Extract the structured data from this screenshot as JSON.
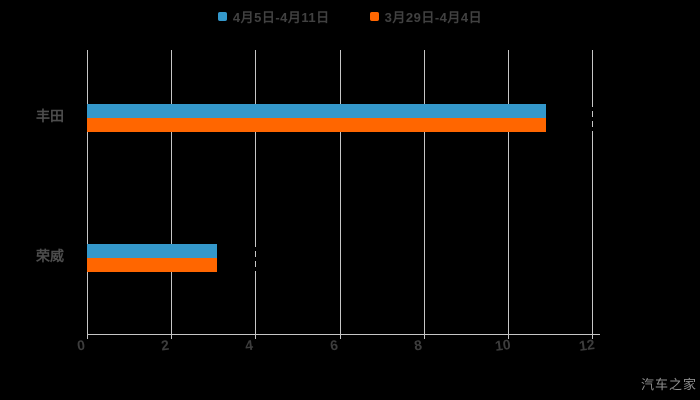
{
  "legend": {
    "items": [
      {
        "label": "4月5日-4月11日",
        "color": "#3498cb"
      },
      {
        "label": "3月29日-4月4日",
        "color": "#ff6600"
      }
    ]
  },
  "chart_data": {
    "type": "bar",
    "orientation": "horizontal",
    "title": "",
    "categories": [
      "丰田",
      "荣威"
    ],
    "series": [
      {
        "name": "4月5日-4月11日",
        "color": "#3498cb",
        "values": [
          10.9,
          3.1
        ]
      },
      {
        "name": "3月29日-4月4日",
        "color": "#ff6600",
        "values": [
          10.9,
          3.1
        ]
      }
    ],
    "xlim": [
      0,
      12
    ],
    "x_ticks": [
      "0",
      "2",
      "4",
      "6",
      "8",
      "10",
      "12"
    ],
    "grid": true,
    "legend_position": "top",
    "background_color": "#000000",
    "gridline_color": "#c6c6c6",
    "axis_label_color": "#3d3d3d"
  },
  "watermark": "汽车之家"
}
